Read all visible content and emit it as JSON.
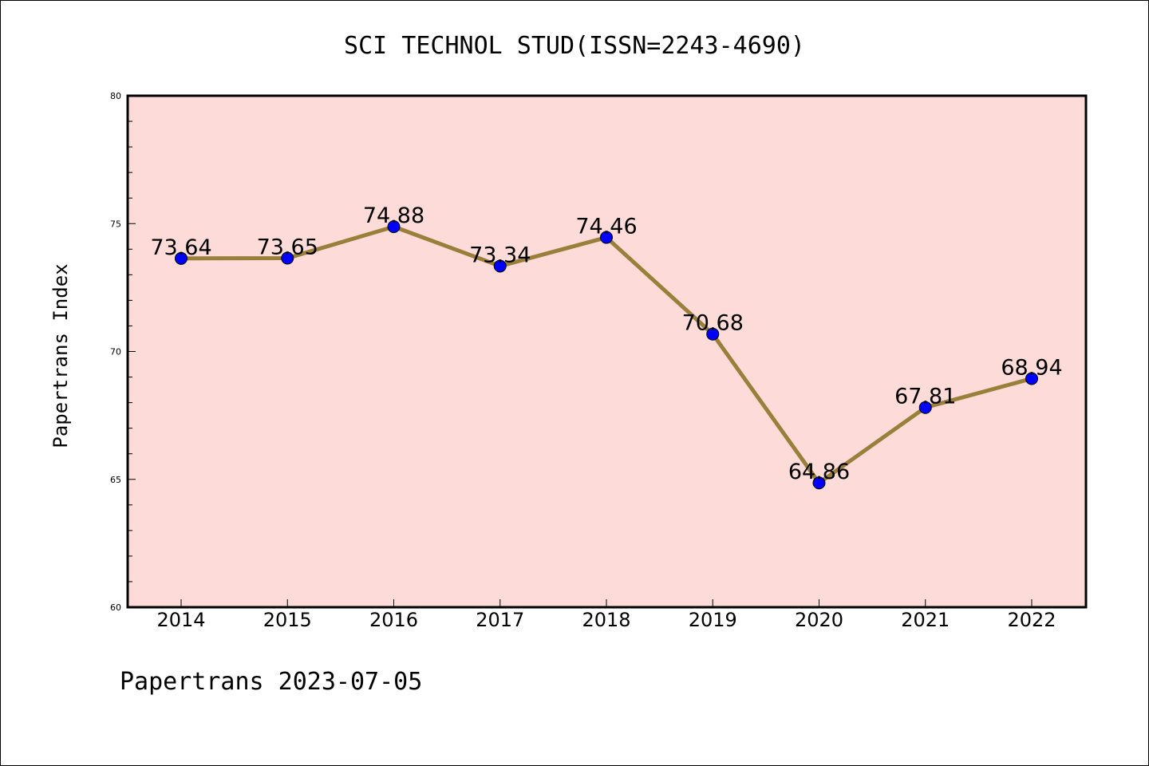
{
  "chart_data": {
    "type": "line",
    "title": "SCI TECHNOL STUD(ISSN=2243-4690)",
    "ylabel": "Papertrans Index",
    "xlabel": "",
    "footer": "Papertrans 2023-07-05",
    "categories": [
      "2014",
      "2015",
      "2016",
      "2017",
      "2018",
      "2019",
      "2020",
      "2021",
      "2022"
    ],
    "series": [
      {
        "values": [
          73.64,
          73.65,
          74.88,
          73.34,
          74.46,
          70.68,
          64.86,
          67.81,
          68.94
        ],
        "labels": [
          "73.64",
          "73.65",
          "74.88",
          "73.34",
          "74.46",
          "70.68",
          "64.86",
          "67.81",
          "68.94"
        ]
      }
    ],
    "ylim": [
      60,
      80
    ],
    "yticks": [
      "60",
      "65",
      "70",
      "75",
      "80"
    ],
    "grid": false,
    "colors": {
      "plot_background": "#fddbd8",
      "line": "#9a7f3a",
      "marker": "#0000ff"
    }
  }
}
